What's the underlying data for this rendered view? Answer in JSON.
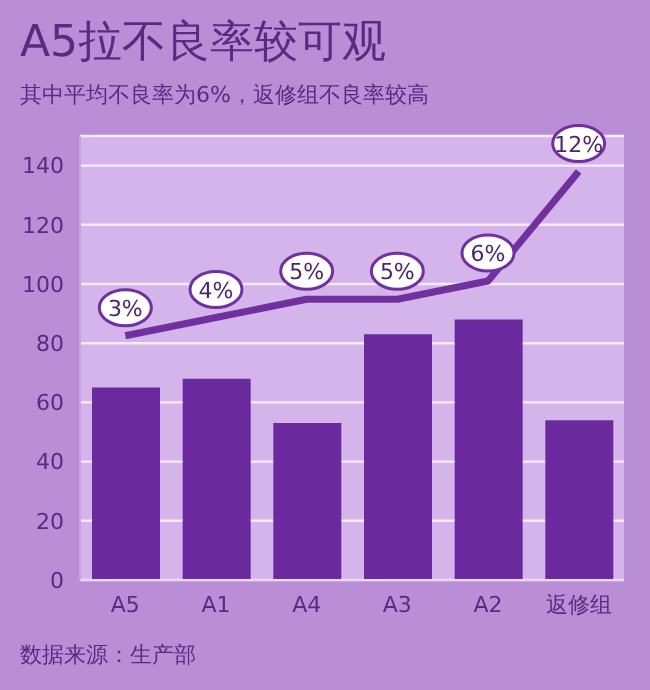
{
  "chart_data": {
    "type": "bar",
    "title": "A5拉不良率较可观",
    "subtitle": "其中平均不良率为6%，返修组不良率较高",
    "categories": [
      "A5",
      "A1",
      "A4",
      "A3",
      "A2",
      "返修组"
    ],
    "series": [
      {
        "color": "#6a2a9e",
        "values": [
          65,
          68,
          53,
          83,
          88,
          54
        ]
      },
      {
        "type": "line",
        "axis": "y2",
        "color": "#7030a0",
        "values": [
          3,
          4,
          5,
          5,
          6,
          12
        ],
        "value_labels": [
          "3%",
          "4%",
          "5%",
          "5%",
          "6%",
          "12%"
        ]
      }
    ],
    "ylim": [
      0,
      150
    ],
    "yticks": [
      0,
      20,
      40,
      60,
      80,
      100,
      120,
      140
    ],
    "grid": "y",
    "marker": "none",
    "line_style": "solid",
    "annotations": [
      "数据来源：生产部"
    ]
  }
}
